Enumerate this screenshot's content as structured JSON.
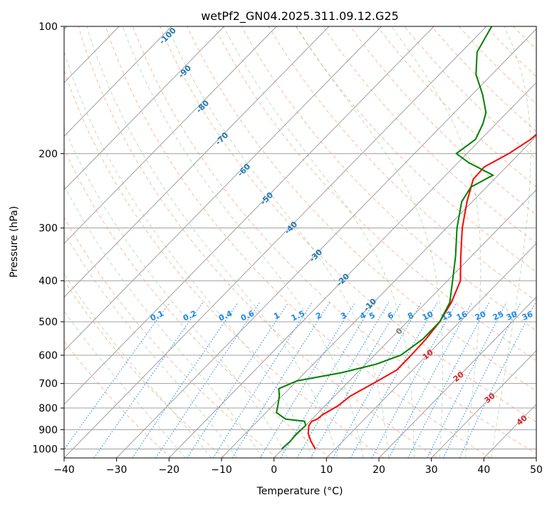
{
  "chart_data": {
    "type": "line",
    "chart_kind": "skew-t log-p diagram",
    "title": "wetPf2_GN04.2025.311.09.12.G25",
    "xlabel": "Temperature (°C)",
    "ylabel": "Pressure (hPa)",
    "xlim": [
      -40,
      50
    ],
    "ylim": [
      1050,
      100
    ],
    "y_scale": "log",
    "grid": true,
    "x_ticks": [
      -40,
      -30,
      -20,
      -10,
      0,
      10,
      20,
      30,
      40,
      50
    ],
    "y_ticks": [
      100,
      200,
      300,
      400,
      500,
      600,
      700,
      800,
      900,
      1000
    ],
    "colors": {
      "temperature": "#ff0000",
      "dewpoint": "#008000",
      "mixing_ratio": "#1e88e5",
      "moist_adiabat_labels": "#1f77b4",
      "dry_adiabat_labels": "#d62728",
      "zero_label": "#7f7f7f"
    },
    "series": [
      {
        "role": "temperature",
        "points": [
          {
            "p": 1000,
            "t": 6.2
          },
          {
            "p": 960,
            "t": 4.0
          },
          {
            "p": 920,
            "t": 2.0
          },
          {
            "p": 880,
            "t": 0.6
          },
          {
            "p": 860,
            "t": 0.4
          },
          {
            "p": 850,
            "t": 1.0
          },
          {
            "p": 830,
            "t": 1.2
          },
          {
            "p": 790,
            "t": 2.5
          },
          {
            "p": 750,
            "t": 3.0
          },
          {
            "p": 700,
            "t": 5.0
          },
          {
            "p": 650,
            "t": 7.0
          },
          {
            "p": 600,
            "t": 7.0
          },
          {
            "p": 550,
            "t": 6.8
          },
          {
            "p": 500,
            "t": 6.2
          },
          {
            "p": 450,
            "t": 4.8
          },
          {
            "p": 400,
            "t": 2.5
          },
          {
            "p": 350,
            "t": -2.0
          },
          {
            "p": 300,
            "t": -7.0
          },
          {
            "p": 260,
            "t": -11.0
          },
          {
            "p": 230,
            "t": -14.0
          },
          {
            "p": 215,
            "t": -14.2
          },
          {
            "p": 200,
            "t": -12.0
          },
          {
            "p": 185,
            "t": -10.5
          },
          {
            "p": 160,
            "t": -9.5
          },
          {
            "p": 140,
            "t": -8.5
          },
          {
            "p": 120,
            "t": -5.5
          },
          {
            "p": 100,
            "t": -2.0
          }
        ]
      },
      {
        "role": "dewpoint",
        "points": [
          {
            "p": 1000,
            "t": -0.2
          },
          {
            "p": 960,
            "t": 0.0
          },
          {
            "p": 920,
            "t": -0.2
          },
          {
            "p": 880,
            "t": 0.0
          },
          {
            "p": 860,
            "t": -1.0
          },
          {
            "p": 850,
            "t": -5.0
          },
          {
            "p": 820,
            "t": -8.0
          },
          {
            "p": 790,
            "t": -9.0
          },
          {
            "p": 750,
            "t": -10.5
          },
          {
            "p": 720,
            "t": -12.0
          },
          {
            "p": 690,
            "t": -10.0
          },
          {
            "p": 660,
            "t": -3.0
          },
          {
            "p": 630,
            "t": 2.0
          },
          {
            "p": 600,
            "t": 5.0
          },
          {
            "p": 550,
            "t": 6.2
          },
          {
            "p": 500,
            "t": 6.2
          },
          {
            "p": 450,
            "t": 4.5
          },
          {
            "p": 400,
            "t": 1.0
          },
          {
            "p": 350,
            "t": -3.0
          },
          {
            "p": 300,
            "t": -8.0
          },
          {
            "p": 260,
            "t": -12.0
          },
          {
            "p": 240,
            "t": -13.0
          },
          {
            "p": 225,
            "t": -11.0
          },
          {
            "p": 210,
            "t": -18.0
          },
          {
            "p": 200,
            "t": -22.0
          },
          {
            "p": 185,
            "t": -21.0
          },
          {
            "p": 170,
            "t": -22.5
          },
          {
            "p": 160,
            "t": -24.0
          },
          {
            "p": 145,
            "t": -28.0
          },
          {
            "p": 130,
            "t": -33.0
          },
          {
            "p": 115,
            "t": -37.0
          },
          {
            "p": 100,
            "t": -39.0
          }
        ]
      }
    ],
    "mixing_ratio_labels": [
      "0.1",
      "0.2",
      "0.4",
      "0.6",
      "1",
      "1.5",
      "2",
      "3",
      "4",
      "5",
      "6",
      "8",
      "10",
      "13",
      "16",
      "20",
      "25",
      "30",
      "36"
    ],
    "moist_adiabat_labels": [
      "-100",
      "-90",
      "-80",
      "-70",
      "-60",
      "-50",
      "-40",
      "-30",
      "-20",
      "-10"
    ],
    "zero_label": "0",
    "dry_adiabat_labels": [
      "10",
      "20",
      "30",
      "40"
    ]
  }
}
